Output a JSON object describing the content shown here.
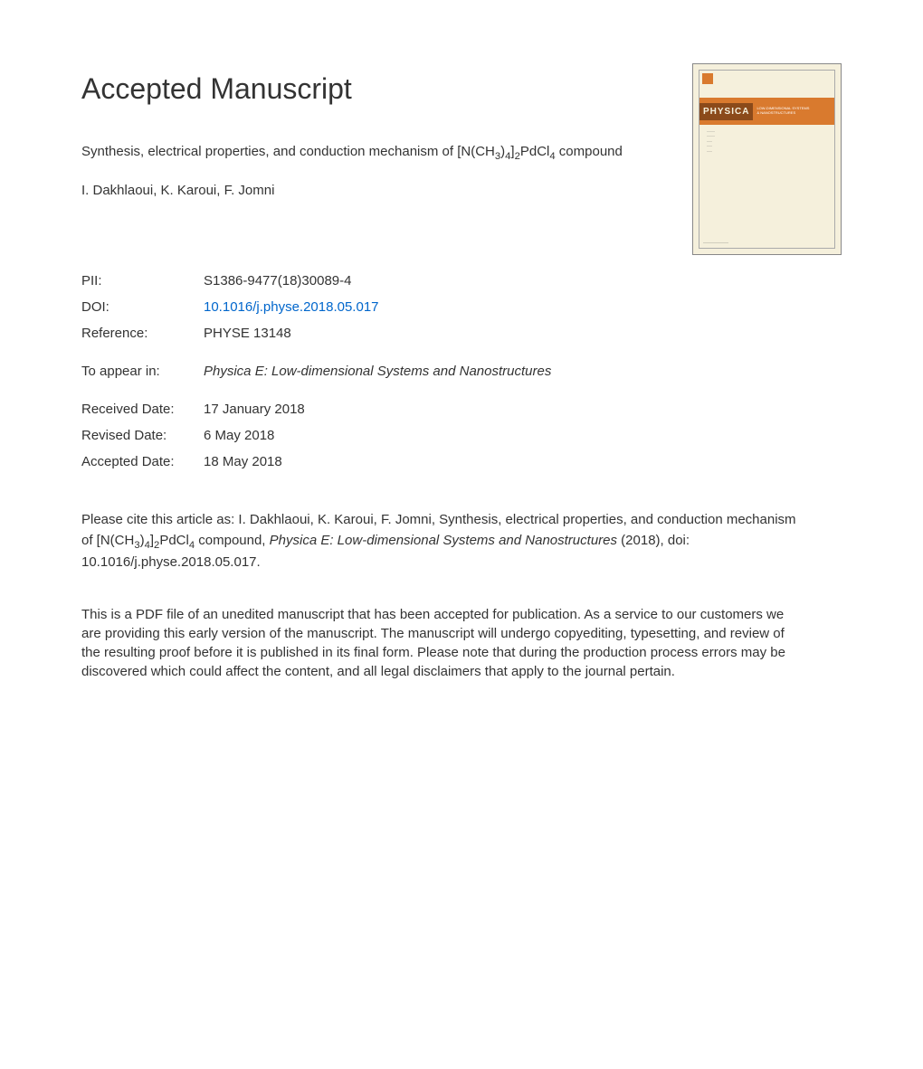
{
  "heading": "Accepted Manuscript",
  "article": {
    "title_prefix": "Synthesis, electrical properties, and conduction mechanism of [N(CH",
    "title_sub1": "3",
    "title_mid1": ")",
    "title_sub2": "4",
    "title_mid2": "]",
    "title_sub3": "2",
    "title_mid3": "PdCl",
    "title_sub4": "4",
    "title_suffix": " compound",
    "authors": "I. Dakhlaoui, K. Karoui, F. Jomni"
  },
  "meta": {
    "pii_label": "PII:",
    "pii_value": "S1386-9477(18)30089-4",
    "doi_label": "DOI:",
    "doi_value": "10.1016/j.physe.2018.05.017",
    "reference_label": "Reference:",
    "reference_value": "PHYSE 13148",
    "appear_label": "To appear in:",
    "appear_value": "Physica E: Low-dimensional Systems and Nanostructures",
    "received_label": "Received Date:",
    "received_value": "17 January 2018",
    "revised_label": "Revised Date:",
    "revised_value": "6 May 2018",
    "accepted_label": "Accepted Date:",
    "accepted_value": "18 May 2018"
  },
  "citation": {
    "prefix": "Please cite this article as: I. Dakhlaoui, K. Karoui, F. Jomni, Synthesis, electrical properties, and conduction mechanism of [N(CH",
    "sub1": "3",
    "mid1": ")",
    "sub2": "4",
    "mid2": "]",
    "sub3": "2",
    "mid3": "PdCl",
    "sub4": "4",
    "mid4": " compound, ",
    "journal": "Physica E: Low-dimensional Systems and Nanostructures",
    "suffix": " (2018), doi: 10.1016/j.physe.2018.05.017."
  },
  "disclaimer": "This is a PDF file of an unedited manuscript that has been accepted for publication. As a service to our customers we are providing this early version of the manuscript. The manuscript will undergo copyediting, typesetting, and review of the resulting proof before it is published in its final form. Please note that during the production process errors may be discovered which could affect the content, and all legal disclaimers that apply to the journal pertain.",
  "cover": {
    "physica_label": "PHYSICA",
    "subtitle_line1": "LOW-DIMENSIONAL SYSTEMS",
    "subtitle_line2": "& NANOSTRUCTURES"
  },
  "colors": {
    "background": "#ffffff",
    "text": "#333333",
    "link": "#0066cc",
    "cover_bg": "#f5f0dc",
    "cover_band": "#d97a2e",
    "cover_dark": "#8b4a1a"
  }
}
